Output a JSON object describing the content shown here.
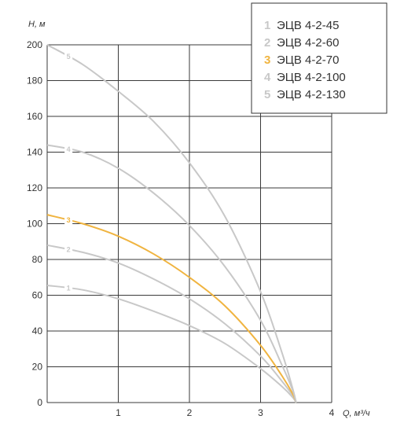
{
  "chart_data": {
    "type": "line",
    "xlabel": "Q, м³/ч",
    "ylabel": "H, м",
    "xlim": [
      0,
      4
    ],
    "ylim": [
      0,
      200
    ],
    "x_ticks": [
      "0",
      "1",
      "2",
      "3",
      "4"
    ],
    "y_ticks": [
      "0",
      "20",
      "40",
      "60",
      "80",
      "100",
      "120",
      "140",
      "160",
      "180",
      "200"
    ],
    "grid": true,
    "legend_position": "top-right",
    "series": [
      {
        "marker": "1",
        "name": "ЭЦВ 4-2-45",
        "color": "#c8c8c8",
        "x": [
          0,
          0.5,
          1.0,
          1.5,
          2.0,
          2.5,
          3.0,
          3.3,
          3.45,
          3.5
        ],
        "y": [
          65.5,
          63,
          58,
          51,
          43,
          33,
          19,
          9,
          3,
          0
        ]
      },
      {
        "marker": "2",
        "name": "ЭЦВ 4-2-60",
        "color": "#c8c8c8",
        "x": [
          0,
          0.5,
          1.0,
          1.5,
          2.0,
          2.5,
          3.0,
          3.3,
          3.45,
          3.5
        ],
        "y": [
          88,
          84,
          78,
          69,
          58,
          44,
          26,
          12,
          4,
          0
        ]
      },
      {
        "marker": "3",
        "name": "ЭЦВ 4-2-70",
        "color": "#f0b440",
        "x": [
          0,
          0.5,
          1.0,
          1.5,
          2.0,
          2.5,
          3.0,
          3.3,
          3.45,
          3.5
        ],
        "y": [
          105,
          100,
          93,
          83,
          70,
          54,
          32,
          15,
          5,
          0
        ]
      },
      {
        "marker": "4",
        "name": "ЭЦВ 4-2-100",
        "color": "#c8c8c8",
        "x": [
          0,
          0.5,
          1.0,
          1.5,
          2.0,
          2.5,
          3.0,
          3.3,
          3.45,
          3.5
        ],
        "y": [
          144,
          140,
          131,
          117,
          99,
          76,
          46,
          21,
          7,
          0
        ]
      },
      {
        "marker": "5",
        "name": "ЭЦВ 4-2-130",
        "color": "#c8c8c8",
        "x": [
          0,
          0.5,
          1.0,
          1.5,
          2.0,
          2.5,
          3.0,
          3.3,
          3.45,
          3.5
        ],
        "y": [
          200,
          189,
          174,
          157,
          134,
          104,
          62,
          28,
          8,
          0
        ]
      }
    ]
  }
}
